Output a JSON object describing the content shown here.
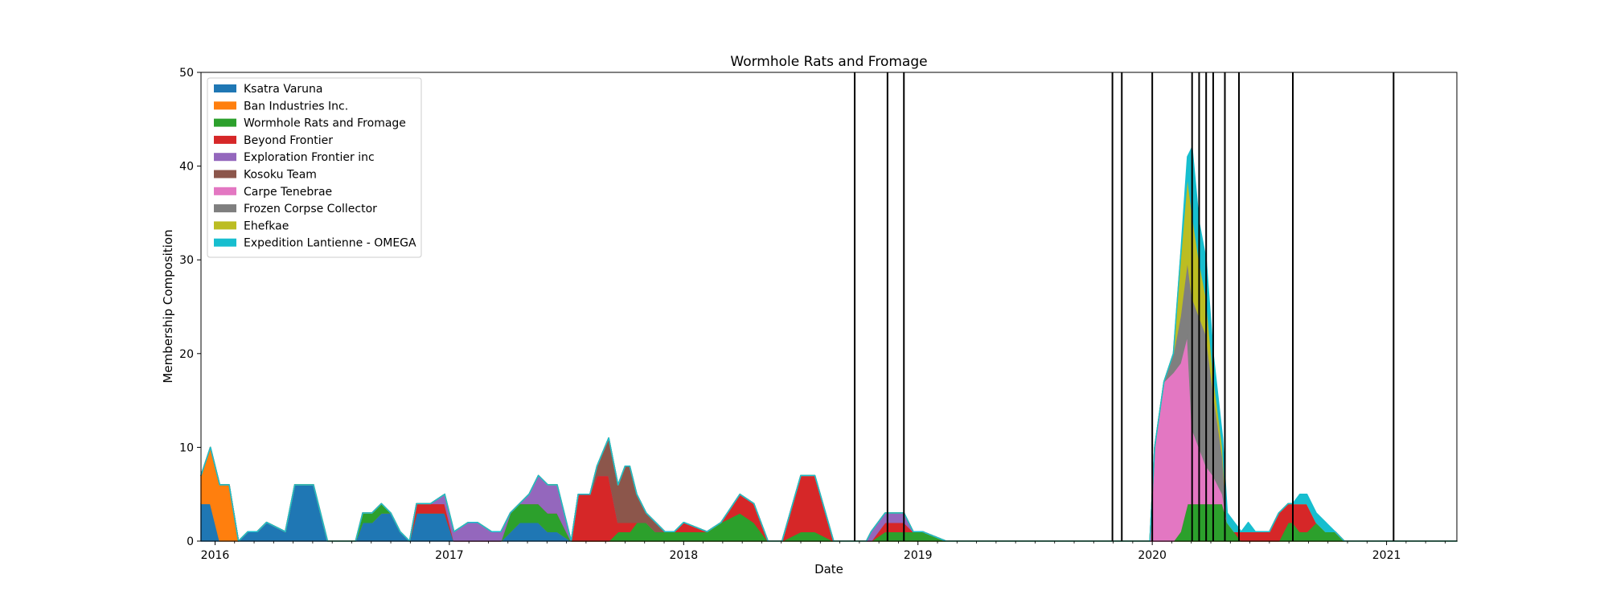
{
  "chart_data": {
    "type": "area",
    "stacked": true,
    "title": "Wormhole Rats and Fromage",
    "xlabel": "Date",
    "ylabel": "Membership Composition",
    "xlim": [
      2015.94,
      2021.3
    ],
    "ylim": [
      0,
      50
    ],
    "x_ticks": [
      2016,
      2017,
      2018,
      2019,
      2020,
      2021
    ],
    "x_tick_labels": [
      "2016",
      "2017",
      "2018",
      "2019",
      "2020",
      "2021"
    ],
    "y_ticks": [
      0,
      10,
      20,
      30,
      40,
      50
    ],
    "y_tick_labels": [
      "0",
      "10",
      "20",
      "30",
      "40",
      "50"
    ],
    "legend_position": "top-left",
    "vertical_lines": [
      2018.73,
      2018.87,
      2018.94,
      2019.83,
      2019.87,
      2020.0,
      2020.17,
      2020.2,
      2020.23,
      2020.26,
      2020.31,
      2020.37,
      2020.6,
      2021.03
    ],
    "colors": [
      "#1f77b4",
      "#ff7f0e",
      "#2ca02c",
      "#d62728",
      "#9467bd",
      "#8c564b",
      "#e377c2",
      "#7f7f7f",
      "#bcbd22",
      "#17becf"
    ],
    "x": [
      2015.94,
      2015.98,
      2016.02,
      2016.06,
      2016.1,
      2016.14,
      2016.18,
      2016.22,
      2016.3,
      2016.34,
      2016.38,
      2016.42,
      2016.48,
      2016.52,
      2016.6,
      2016.63,
      2016.67,
      2016.71,
      2016.75,
      2016.79,
      2016.83,
      2016.86,
      2016.92,
      2016.98,
      2017.02,
      2017.08,
      2017.12,
      2017.18,
      2017.22,
      2017.26,
      2017.3,
      2017.34,
      2017.38,
      2017.42,
      2017.46,
      2017.52,
      2017.55,
      2017.6,
      2017.63,
      2017.68,
      2017.72,
      2017.75,
      2017.77,
      2017.8,
      2017.84,
      2017.88,
      2017.92,
      2017.96,
      2018.0,
      2018.1,
      2018.16,
      2018.24,
      2018.3,
      2018.36,
      2018.42,
      2018.5,
      2018.52,
      2018.56,
      2018.64,
      2018.66,
      2018.72,
      2018.78,
      2018.8,
      2018.86,
      2018.94,
      2018.98,
      2019.02,
      2019.12,
      2019.15,
      2019.5,
      2019.99,
      2020.01,
      2020.05,
      2020.09,
      2020.12,
      2020.15,
      2020.17,
      2020.2,
      2020.23,
      2020.26,
      2020.3,
      2020.32,
      2020.35,
      2020.38,
      2020.41,
      2020.44,
      2020.47,
      2020.5,
      2020.54,
      2020.58,
      2020.6,
      2020.63,
      2020.66,
      2020.7,
      2020.74,
      2020.78,
      2020.82,
      2020.87,
      2021.0,
      2021.3
    ],
    "series": [
      {
        "name": "Ksatra Varuna",
        "values": [
          4,
          4,
          0,
          0,
          0,
          1,
          1,
          2,
          1,
          6,
          6,
          6,
          0,
          0,
          0,
          2,
          2,
          3,
          3,
          1,
          0,
          3,
          3,
          3,
          0,
          0,
          0,
          0,
          0,
          1,
          2,
          2,
          2,
          1,
          1,
          0,
          0,
          0,
          0,
          0,
          0,
          0,
          0,
          0,
          0,
          0,
          0,
          0,
          0,
          0,
          0,
          0,
          0,
          0,
          0,
          0,
          0,
          0,
          0,
          0,
          0,
          0,
          0,
          0,
          0,
          0,
          0,
          0,
          0,
          0,
          0,
          0,
          0,
          0,
          0,
          0,
          0,
          0,
          0,
          0,
          0,
          0,
          0,
          0,
          0,
          0,
          0,
          0,
          0,
          0,
          0,
          0,
          0,
          0,
          0,
          0,
          0,
          0,
          0,
          0
        ]
      },
      {
        "name": "Ban Industries Inc.",
        "values": [
          3,
          6,
          6,
          6,
          0,
          0,
          0,
          0,
          0,
          0,
          0,
          0,
          0,
          0,
          0,
          0,
          0,
          0,
          0,
          0,
          0,
          0,
          0,
          0,
          0,
          0,
          0,
          0,
          0,
          0,
          0,
          0,
          0,
          0,
          0,
          0,
          0,
          0,
          0,
          0,
          0,
          0,
          0,
          0,
          0,
          0,
          0,
          0,
          0,
          0,
          0,
          0,
          0,
          0,
          0,
          0,
          0,
          0,
          0,
          0,
          0,
          0,
          0,
          0,
          0,
          0,
          0,
          0,
          0,
          0,
          0,
          0,
          0,
          0,
          0,
          0,
          0,
          0,
          0,
          0,
          0,
          0,
          0,
          0,
          0,
          0,
          0,
          0,
          0,
          0,
          0,
          0,
          0,
          0,
          0,
          0,
          0,
          0,
          0,
          0
        ]
      },
      {
        "name": "Wormhole Rats and Fromage",
        "values": [
          0,
          0,
          0,
          0,
          0,
          0,
          0,
          0,
          0,
          0,
          0,
          0,
          0,
          0,
          0,
          1,
          1,
          1,
          0,
          0,
          0,
          0,
          0,
          0,
          0,
          0,
          0,
          0,
          0,
          2,
          2,
          2,
          2,
          2,
          2,
          0,
          0,
          0,
          0,
          0,
          1,
          1,
          1,
          2,
          2,
          1,
          1,
          1,
          1,
          1,
          2,
          3,
          2,
          0,
          0,
          1,
          1,
          1,
          0,
          0,
          0,
          0,
          0,
          1,
          1,
          1,
          1,
          0,
          0,
          0,
          0,
          0,
          0,
          0,
          1,
          4,
          4,
          4,
          4,
          4,
          4,
          2,
          1,
          0,
          0,
          0,
          0,
          0,
          0,
          2,
          2,
          1,
          1,
          2,
          1,
          1,
          0,
          0,
          0,
          0
        ]
      },
      {
        "name": "Beyond Frontier",
        "values": [
          0,
          0,
          0,
          0,
          0,
          0,
          0,
          0,
          0,
          0,
          0,
          0,
          0,
          0,
          0,
          0,
          0,
          0,
          0,
          0,
          0,
          1,
          1,
          1,
          0,
          0,
          0,
          0,
          0,
          0,
          0,
          0,
          0,
          0,
          0,
          0,
          5,
          5,
          7,
          7,
          1,
          1,
          1,
          0,
          0,
          0,
          0,
          0,
          1,
          0,
          0,
          2,
          2,
          0,
          0,
          6,
          6,
          6,
          0,
          0,
          0,
          0,
          0,
          1,
          1,
          0,
          0,
          0,
          0,
          0,
          0,
          0,
          0,
          0,
          0,
          0,
          0,
          0,
          0,
          0,
          0,
          0,
          0,
          1,
          1,
          1,
          1,
          1,
          3,
          2,
          2,
          3,
          3,
          0,
          0,
          0,
          0,
          0,
          0,
          0
        ]
      },
      {
        "name": "Exploration Frontier inc",
        "values": [
          0,
          0,
          0,
          0,
          0,
          0,
          0,
          0,
          0,
          0,
          0,
          0,
          0,
          0,
          0,
          0,
          0,
          0,
          0,
          0,
          0,
          0,
          0,
          1,
          1,
          2,
          2,
          1,
          1,
          0,
          0,
          1,
          3,
          3,
          3,
          0,
          0,
          0,
          0,
          0,
          0,
          0,
          0,
          0,
          0,
          0,
          0,
          0,
          0,
          0,
          0,
          0,
          0,
          0,
          0,
          0,
          0,
          0,
          0,
          0,
          0,
          0,
          1,
          1,
          1,
          0,
          0,
          0,
          0,
          0,
          0,
          0,
          0,
          0,
          0,
          0,
          0,
          0,
          0,
          0,
          0,
          0,
          0,
          0,
          0,
          0,
          0,
          0,
          0,
          0,
          0,
          0,
          0,
          0,
          0,
          0,
          0,
          0,
          0,
          0
        ]
      },
      {
        "name": "Kosoku Team",
        "values": [
          0,
          0,
          0,
          0,
          0,
          0,
          0,
          0,
          0,
          0,
          0,
          0,
          0,
          0,
          0,
          0,
          0,
          0,
          0,
          0,
          0,
          0,
          0,
          0,
          0,
          0,
          0,
          0,
          0,
          0,
          0,
          0,
          0,
          0,
          0,
          0,
          0,
          0,
          1,
          4,
          4,
          6,
          6,
          3,
          1,
          1,
          0,
          0,
          0,
          0,
          0,
          0,
          0,
          0,
          0,
          0,
          0,
          0,
          0,
          0,
          0,
          0,
          0,
          0,
          0,
          0,
          0,
          0,
          0,
          0,
          0,
          0,
          0,
          0,
          0,
          0,
          0,
          0,
          0,
          0,
          0,
          0,
          0,
          0,
          0,
          0,
          0,
          0,
          0,
          0,
          0,
          0,
          0,
          0,
          0,
          0,
          0,
          0,
          0,
          0
        ]
      },
      {
        "name": "Carpe Tenebrae",
        "values": [
          0,
          0,
          0,
          0,
          0,
          0,
          0,
          0,
          0,
          0,
          0,
          0,
          0,
          0,
          0,
          0,
          0,
          0,
          0,
          0,
          0,
          0,
          0,
          0,
          0,
          0,
          0,
          0,
          0,
          0,
          0,
          0,
          0,
          0,
          0,
          0,
          0,
          0,
          0,
          0,
          0,
          0,
          0,
          0,
          0,
          0,
          0,
          0,
          0,
          0,
          0,
          0,
          0,
          0,
          0,
          0,
          0,
          0,
          0,
          0,
          0,
          0,
          0,
          0,
          0,
          0,
          0,
          0,
          0,
          0,
          0,
          10,
          17,
          18,
          18,
          18,
          8,
          6,
          4,
          3,
          1,
          0,
          0,
          0,
          0,
          0,
          0,
          0,
          0,
          0,
          0,
          0,
          0,
          0,
          0,
          0,
          0,
          0,
          0,
          0
        ]
      },
      {
        "name": "Frozen Corpse Collector",
        "values": [
          0,
          0,
          0,
          0,
          0,
          0,
          0,
          0,
          0,
          0,
          0,
          0,
          0,
          0,
          0,
          0,
          0,
          0,
          0,
          0,
          0,
          0,
          0,
          0,
          0,
          0,
          0,
          0,
          0,
          0,
          0,
          0,
          0,
          0,
          0,
          0,
          0,
          0,
          0,
          0,
          0,
          0,
          0,
          0,
          0,
          0,
          0,
          0,
          0,
          0,
          0,
          0,
          0,
          0,
          0,
          0,
          0,
          0,
          0,
          0,
          0,
          0,
          0,
          0,
          0,
          0,
          0,
          0,
          0,
          0,
          0,
          0,
          0,
          2,
          5,
          8,
          14,
          14,
          14,
          9,
          4,
          0,
          0,
          0,
          0,
          0,
          0,
          0,
          0,
          0,
          0,
          0,
          0,
          0,
          0,
          0,
          0,
          0,
          0,
          0
        ]
      },
      {
        "name": "Ehefkae",
        "values": [
          0,
          0,
          0,
          0,
          0,
          0,
          0,
          0,
          0,
          0,
          0,
          0,
          0,
          0,
          0,
          0,
          0,
          0,
          0,
          0,
          0,
          0,
          0,
          0,
          0,
          0,
          0,
          0,
          0,
          0,
          0,
          0,
          0,
          0,
          0,
          0,
          0,
          0,
          0,
          0,
          0,
          0,
          0,
          0,
          0,
          0,
          0,
          0,
          0,
          0,
          0,
          0,
          0,
          0,
          0,
          0,
          0,
          0,
          0,
          0,
          0,
          0,
          0,
          0,
          0,
          0,
          0,
          0,
          0,
          0,
          0,
          0,
          0,
          0,
          6,
          9,
          9,
          6,
          4,
          2,
          1,
          0,
          0,
          0,
          0,
          0,
          0,
          0,
          0,
          0,
          0,
          0,
          0,
          0,
          0,
          0,
          0,
          0,
          0,
          0
        ]
      },
      {
        "name": "Expedition Lantienne - OMEGA",
        "values": [
          0,
          0,
          0,
          0,
          0,
          0,
          0,
          0,
          0,
          0,
          0,
          0,
          0,
          0,
          0,
          0,
          0,
          0,
          0,
          0,
          0,
          0,
          0,
          0,
          0,
          0,
          0,
          0,
          0,
          0,
          0,
          0,
          0,
          0,
          0,
          0,
          0,
          0,
          0,
          0,
          0,
          0,
          0,
          0,
          0,
          0,
          0,
          0,
          0,
          0,
          0,
          0,
          0,
          0,
          0,
          0,
          0,
          0,
          0,
          0,
          0,
          0,
          0,
          0,
          0,
          0,
          0,
          0,
          0,
          0,
          0,
          0,
          0,
          0,
          0,
          2,
          7,
          4,
          4,
          2,
          1,
          1,
          1,
          0,
          1,
          0,
          0,
          0,
          0,
          0,
          0,
          1,
          1,
          1,
          1,
          0,
          0,
          0,
          0,
          0
        ]
      }
    ]
  }
}
